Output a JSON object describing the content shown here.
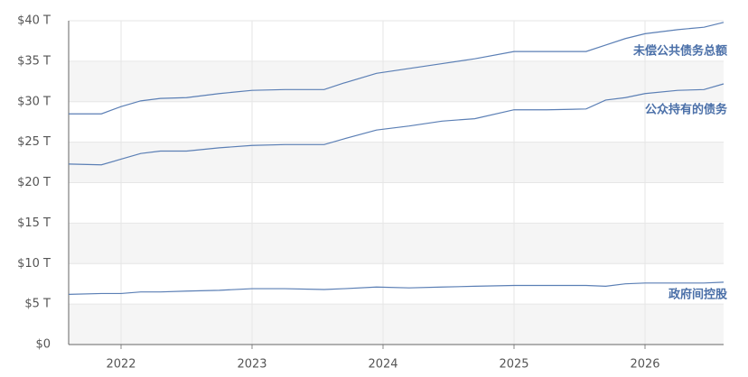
{
  "chart_data": {
    "type": "line",
    "x": [
      2021.6,
      2021.85,
      2022.0,
      2022.15,
      2022.3,
      2022.5,
      2022.75,
      2023.0,
      2023.25,
      2023.55,
      2023.7,
      2023.95,
      2024.2,
      2024.45,
      2024.7,
      2025.0,
      2025.25,
      2025.55,
      2025.7,
      2025.85,
      2026.0,
      2026.25,
      2026.45,
      2026.6
    ],
    "series": [
      {
        "name": "未偿公共债务总额",
        "color": "#5b7fb5",
        "values": [
          28.5,
          28.5,
          29.4,
          30.1,
          30.4,
          30.5,
          31.0,
          31.4,
          31.5,
          31.5,
          32.3,
          33.5,
          34.1,
          34.7,
          35.3,
          36.2,
          36.2,
          36.2,
          37.0,
          37.8,
          38.4,
          38.9,
          39.2,
          39.8
        ]
      },
      {
        "name": "公众持有的债务",
        "color": "#5b7fb5",
        "values": [
          22.3,
          22.2,
          22.9,
          23.6,
          23.9,
          23.9,
          24.3,
          24.6,
          24.7,
          24.7,
          25.4,
          26.5,
          27.0,
          27.6,
          27.9,
          29.0,
          29.0,
          29.1,
          30.2,
          30.5,
          31.0,
          31.4,
          31.5,
          32.2
        ]
      },
      {
        "name": "政府间控股",
        "color": "#5b7fb5",
        "values": [
          6.2,
          6.3,
          6.3,
          6.5,
          6.5,
          6.6,
          6.7,
          6.9,
          6.9,
          6.8,
          6.9,
          7.1,
          7.0,
          7.1,
          7.2,
          7.3,
          7.3,
          7.3,
          7.2,
          7.5,
          7.6,
          7.6,
          7.6,
          7.7
        ]
      }
    ],
    "xlim": [
      2021.6,
      2026.6
    ],
    "xticks": [
      2022,
      2023,
      2024,
      2025,
      2026
    ],
    "ylim": [
      0,
      40
    ],
    "yticks": [
      {
        "value": 0,
        "label": "$0"
      },
      {
        "value": 5,
        "label": "$5 T"
      },
      {
        "value": 10,
        "label": "$10 T"
      },
      {
        "value": 15,
        "label": "$15 T"
      },
      {
        "value": 20,
        "label": "$20 T"
      },
      {
        "value": 25,
        "label": "$25 T"
      },
      {
        "value": 30,
        "label": "$30 T"
      },
      {
        "value": 35,
        "label": "$35 T"
      },
      {
        "value": 40,
        "label": "$40 T"
      }
    ],
    "grid": true
  }
}
